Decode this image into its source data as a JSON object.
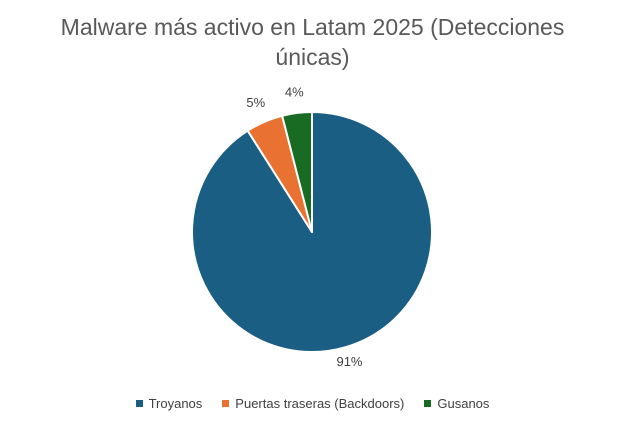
{
  "chart_data": {
    "type": "pie",
    "title_line1": "Malware más activo en Latam 2025 (Detecciones",
    "title_line2": "únicas)",
    "slices": [
      {
        "label": "Troyanos",
        "value": 91,
        "display": "91%",
        "color": "#1a5e83"
      },
      {
        "label": "Puertas traseras (Backdoors)",
        "value": 5,
        "display": "5%",
        "color": "#e97132"
      },
      {
        "label": "Gusanos",
        "value": 4,
        "display": "4%",
        "color": "#196b24"
      }
    ],
    "legend_position": "bottom",
    "start_angle": "12 o'clock, clockwise"
  }
}
